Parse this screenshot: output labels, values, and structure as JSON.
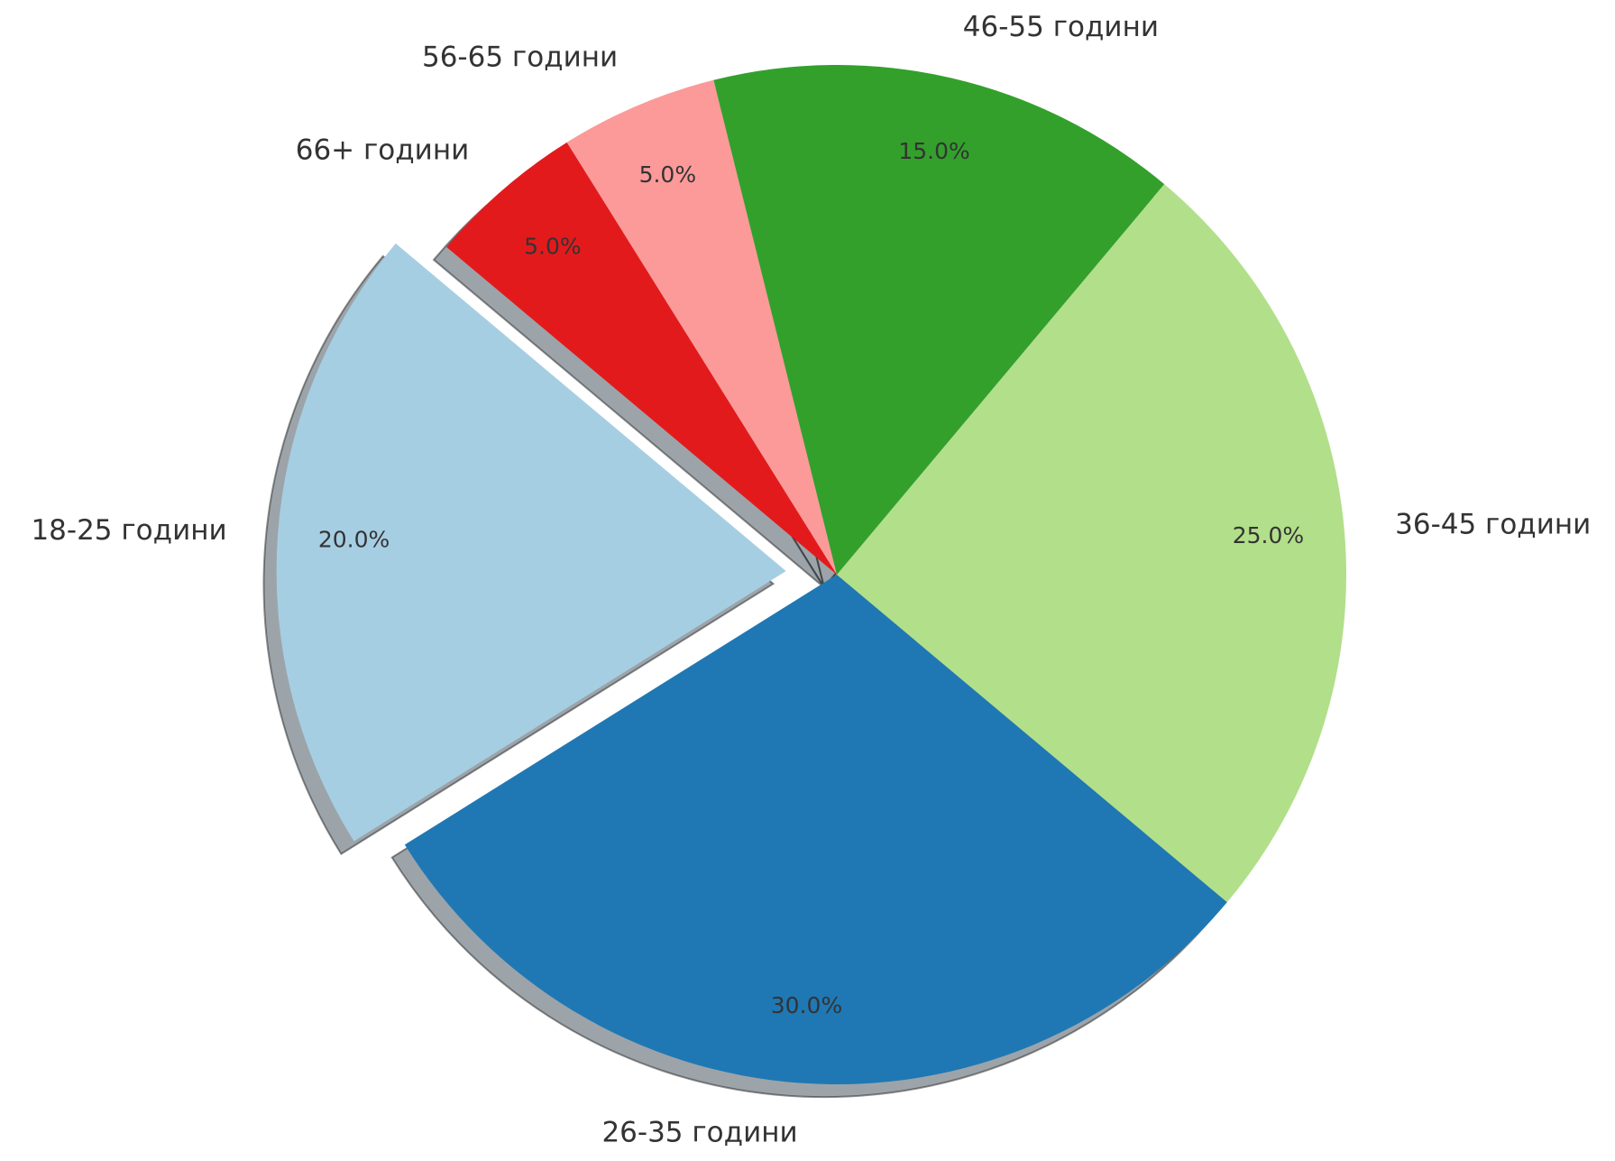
{
  "chart_data": {
    "type": "pie",
    "categories": [
      "18-25 години",
      "26-35 години",
      "36-45 години",
      "46-55 години",
      "56-65 години",
      "66+ години"
    ],
    "values": [
      20,
      30,
      25,
      15,
      5,
      5
    ],
    "value_labels": [
      "20.0%",
      "30.0%",
      "25.0%",
      "15.0%",
      "5.0%",
      "5.0%"
    ],
    "colors": [
      "#a6cee3",
      "#1f78b4",
      "#b2df8a",
      "#33a02c",
      "#fb9a99",
      "#e31a1c"
    ],
    "explode": [
      0.1,
      0,
      0,
      0,
      0,
      0
    ],
    "start_angle": 140,
    "shadow": true
  }
}
